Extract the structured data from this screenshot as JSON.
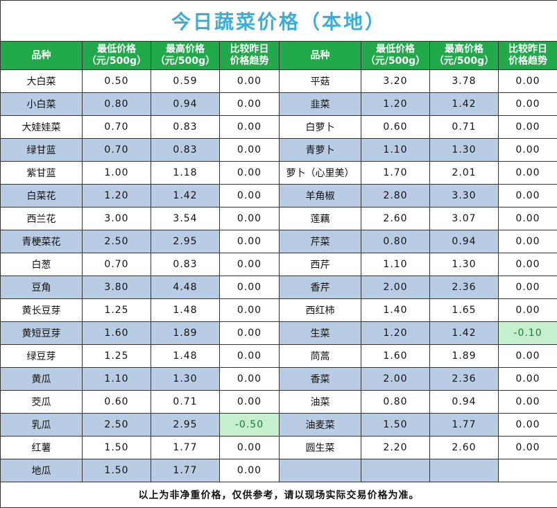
{
  "title": "今日蔬菜价格（本地）",
  "headers": {
    "name": "品种",
    "low": "最低价格\n（元/500g）",
    "high": "最高价格\n（元/500g）",
    "trend": "比较昨日\n价格趋势"
  },
  "highlight_color": "#c6efce",
  "shade_color": "#b8cce4",
  "header_color": "#22a94b",
  "left": [
    {
      "name": "大白菜",
      "low": "0.50",
      "high": "0.59",
      "trend": "0.00"
    },
    {
      "name": "小白菜",
      "low": "0.80",
      "high": "0.94",
      "trend": "0.00"
    },
    {
      "name": "大娃娃菜",
      "low": "0.70",
      "high": "0.83",
      "trend": "0.00"
    },
    {
      "name": "绿甘蓝",
      "low": "0.70",
      "high": "0.83",
      "trend": "0.00"
    },
    {
      "name": "紫甘蓝",
      "low": "1.00",
      "high": "1.18",
      "trend": "0.00"
    },
    {
      "name": "白菜花",
      "low": "1.20",
      "high": "1.42",
      "trend": "0.00"
    },
    {
      "name": "西兰花",
      "low": "3.00",
      "high": "3.54",
      "trend": "0.00"
    },
    {
      "name": "青梗菜花",
      "low": "2.50",
      "high": "2.95",
      "trend": "0.00"
    },
    {
      "name": "白葱",
      "low": "0.70",
      "high": "0.83",
      "trend": "0.00"
    },
    {
      "name": "豆角",
      "low": "3.80",
      "high": "4.48",
      "trend": "0.00"
    },
    {
      "name": "黄长豆芽",
      "low": "1.25",
      "high": "1.48",
      "trend": "0.00"
    },
    {
      "name": "黄短豆芽",
      "low": "1.60",
      "high": "1.89",
      "trend": "0.00"
    },
    {
      "name": "绿豆芽",
      "low": "1.25",
      "high": "1.48",
      "trend": "0.00"
    },
    {
      "name": "黄瓜",
      "low": "1.10",
      "high": "1.30",
      "trend": "0.00"
    },
    {
      "name": "茭瓜",
      "low": "0.60",
      "high": "0.71",
      "trend": "0.00"
    },
    {
      "name": "乳瓜",
      "low": "2.50",
      "high": "2.95",
      "trend": "-0.50",
      "highlight": true
    },
    {
      "name": "红薯",
      "low": "1.50",
      "high": "1.77",
      "trend": "0.00"
    },
    {
      "name": "地瓜",
      "low": "1.50",
      "high": "1.77",
      "trend": "0.00"
    }
  ],
  "right": [
    {
      "name": "平菇",
      "low": "3.20",
      "high": "3.78",
      "trend": "0.00"
    },
    {
      "name": "韭菜",
      "low": "1.20",
      "high": "1.42",
      "trend": "0.00"
    },
    {
      "name": "白萝卜",
      "low": "0.60",
      "high": "0.71",
      "trend": "0.00"
    },
    {
      "name": "青萝卜",
      "low": "1.10",
      "high": "1.30",
      "trend": "0.00"
    },
    {
      "name": "萝卜（心里美）",
      "low": "1.70",
      "high": "2.01",
      "trend": "0.00"
    },
    {
      "name": "羊角椒",
      "low": "2.80",
      "high": "3.30",
      "trend": "0.00"
    },
    {
      "name": "莲藕",
      "low": "2.60",
      "high": "3.07",
      "trend": "0.00"
    },
    {
      "name": "芹菜",
      "low": "0.80",
      "high": "0.94",
      "trend": "0.00"
    },
    {
      "name": "西芹",
      "low": "1.10",
      "high": "1.30",
      "trend": "0.00"
    },
    {
      "name": "香芹",
      "low": "2.00",
      "high": "2.36",
      "trend": "0.00"
    },
    {
      "name": "西红柿",
      "low": "1.40",
      "high": "1.65",
      "trend": "0.00"
    },
    {
      "name": "生菜",
      "low": "1.20",
      "high": "1.42",
      "trend": "-0.10",
      "highlight": true
    },
    {
      "name": "茼蒿",
      "low": "1.60",
      "high": "1.89",
      "trend": "0.00"
    },
    {
      "name": "香菜",
      "low": "2.00",
      "high": "2.36",
      "trend": "0.00"
    },
    {
      "name": "油菜",
      "low": "0.80",
      "high": "0.94",
      "trend": "0.00"
    },
    {
      "name": "油麦菜",
      "low": "1.50",
      "high": "1.77",
      "trend": "0.00"
    },
    {
      "name": "圆生菜",
      "low": "2.20",
      "high": "2.60",
      "trend": "0.00"
    },
    {
      "name": "",
      "low": "",
      "high": "",
      "trend": ""
    }
  ],
  "note": "以上为非净重价格，仅供参考，请以现场实际交易价格为准。"
}
